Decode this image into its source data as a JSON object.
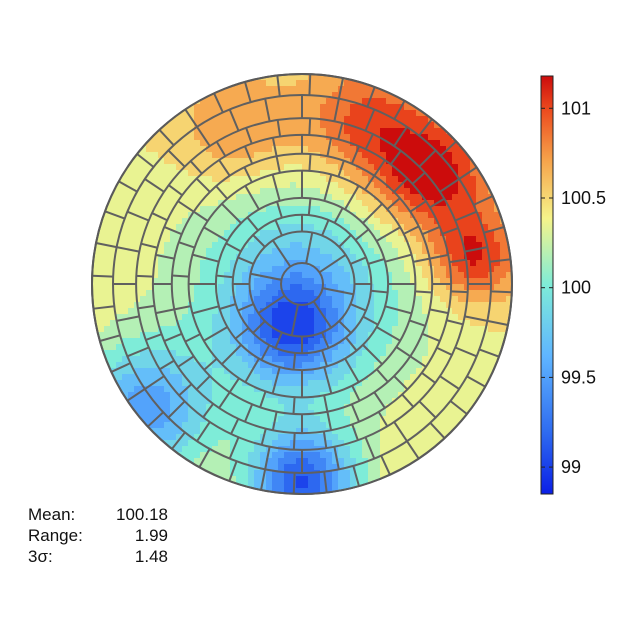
{
  "chart_data": {
    "type": "heatmap",
    "title": "",
    "description_kind": "wafer map with concentric ring/sector grid",
    "colormap": "jet",
    "colorbar": {
      "min": 98.85,
      "max": 101.18,
      "ticks": [
        99,
        99.5,
        100,
        100.5,
        101
      ],
      "tick_labels": [
        "99",
        "99.5",
        "100",
        "100.5",
        "101"
      ],
      "placement": "right"
    },
    "grid": {
      "rings": [
        0.1,
        0.25,
        0.33,
        0.41,
        0.54,
        0.62,
        0.71,
        0.79,
        0.9,
        1.0
      ],
      "sectors_per_ring": [
        1,
        8,
        16,
        16,
        24,
        24,
        32,
        32,
        32,
        40
      ]
    },
    "hotspots": [
      {
        "x": 0.0,
        "y": 0.0,
        "value": 99.85,
        "sigma": 0.35
      },
      {
        "x": 0.62,
        "y": 0.5,
        "value": 101.1,
        "sigma": 0.2
      },
      {
        "x": 0.82,
        "y": 0.12,
        "value": 101.0,
        "sigma": 0.15
      },
      {
        "x": 0.3,
        "y": 0.75,
        "value": 100.9,
        "sigma": 0.22
      },
      {
        "x": -0.3,
        "y": 0.72,
        "value": 100.7,
        "sigma": 0.2
      },
      {
        "x": -0.05,
        "y": -0.22,
        "value": 99.4,
        "sigma": 0.18
      },
      {
        "x": 0.0,
        "y": -0.95,
        "value": 99.0,
        "sigma": 0.18
      },
      {
        "x": -0.75,
        "y": -0.6,
        "value": 99.4,
        "sigma": 0.22
      }
    ],
    "baseline_value": 100.3
  },
  "stats": {
    "mean_label": "Mean:",
    "mean_value": "100.18",
    "range_label": "Range:",
    "range_value": "1.99",
    "sigma_label": "3σ:",
    "sigma_value": "1.48"
  }
}
